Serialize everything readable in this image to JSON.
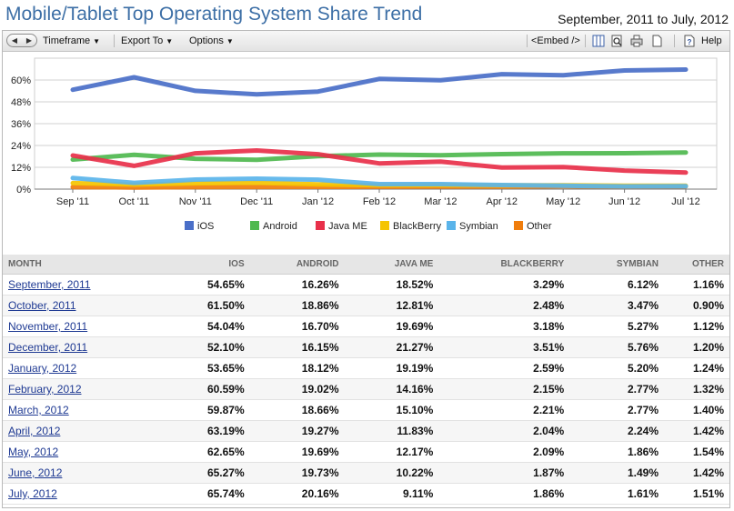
{
  "title": "Mobile/Tablet Top Operating System Share Trend",
  "date_range": "September, 2011 to July, 2012",
  "toolbar": {
    "timeframe": "Timeframe",
    "export_to": "Export To",
    "options": "Options",
    "embed": "<Embed />",
    "help": "Help",
    "caret": "▼",
    "prev": "◀",
    "next": "▶"
  },
  "chart_data": {
    "type": "area",
    "categories": [
      "Sep '11",
      "Oct '11",
      "Nov '11",
      "Dec '11",
      "Jan '12",
      "Feb '12",
      "Mar '12",
      "Apr '12",
      "May '12",
      "Jun '12",
      "Jul '12"
    ],
    "y_ticks": [
      "0%",
      "12%",
      "24%",
      "36%",
      "48%",
      "60%"
    ],
    "ylim": [
      0,
      72
    ],
    "grid": true,
    "legend_position": "bottom",
    "series": [
      {
        "name": "iOS",
        "color": "#4a6fc8",
        "values": [
          54.65,
          61.5,
          54.04,
          52.1,
          53.65,
          60.59,
          59.87,
          63.19,
          62.65,
          65.27,
          65.74
        ]
      },
      {
        "name": "Android",
        "color": "#4fb94f",
        "values": [
          16.26,
          18.86,
          16.7,
          16.15,
          18.12,
          19.02,
          18.66,
          19.27,
          19.69,
          19.73,
          20.16
        ]
      },
      {
        "name": "Java ME",
        "color": "#e8304a",
        "values": [
          18.52,
          12.81,
          19.69,
          21.27,
          19.19,
          14.16,
          15.1,
          11.83,
          12.17,
          10.22,
          9.11
        ]
      },
      {
        "name": "BlackBerry",
        "color": "#f5c400",
        "values": [
          3.29,
          2.48,
          3.18,
          3.51,
          2.59,
          2.15,
          2.21,
          2.04,
          2.09,
          1.87,
          1.86
        ]
      },
      {
        "name": "Symbian",
        "color": "#5ab4ea",
        "values": [
          6.12,
          3.47,
          5.27,
          5.76,
          5.2,
          2.77,
          2.77,
          2.24,
          1.86,
          1.49,
          1.61
        ]
      },
      {
        "name": "Other",
        "color": "#f07d0c",
        "values": [
          1.16,
          0.9,
          1.12,
          1.2,
          1.24,
          1.32,
          1.4,
          1.42,
          1.54,
          1.42,
          1.51
        ]
      }
    ]
  },
  "table": {
    "headers": [
      "MONTH",
      "IOS",
      "ANDROID",
      "JAVA ME",
      "BLACKBERRY",
      "SYMBIAN",
      "OTHER"
    ],
    "rows": [
      [
        "September, 2011",
        "54.65%",
        "16.26%",
        "18.52%",
        "3.29%",
        "6.12%",
        "1.16%"
      ],
      [
        "October, 2011",
        "61.50%",
        "18.86%",
        "12.81%",
        "2.48%",
        "3.47%",
        "0.90%"
      ],
      [
        "November, 2011",
        "54.04%",
        "16.70%",
        "19.69%",
        "3.18%",
        "5.27%",
        "1.12%"
      ],
      [
        "December, 2011",
        "52.10%",
        "16.15%",
        "21.27%",
        "3.51%",
        "5.76%",
        "1.20%"
      ],
      [
        "January, 2012",
        "53.65%",
        "18.12%",
        "19.19%",
        "2.59%",
        "5.20%",
        "1.24%"
      ],
      [
        "February, 2012",
        "60.59%",
        "19.02%",
        "14.16%",
        "2.15%",
        "2.77%",
        "1.32%"
      ],
      [
        "March, 2012",
        "59.87%",
        "18.66%",
        "15.10%",
        "2.21%",
        "2.77%",
        "1.40%"
      ],
      [
        "April, 2012",
        "63.19%",
        "19.27%",
        "11.83%",
        "2.04%",
        "2.24%",
        "1.42%"
      ],
      [
        "May, 2012",
        "62.65%",
        "19.69%",
        "12.17%",
        "2.09%",
        "1.86%",
        "1.54%"
      ],
      [
        "June, 2012",
        "65.27%",
        "19.73%",
        "10.22%",
        "1.87%",
        "1.49%",
        "1.42%"
      ],
      [
        "July, 2012",
        "65.74%",
        "20.16%",
        "9.11%",
        "1.86%",
        "1.61%",
        "1.51%"
      ]
    ]
  }
}
